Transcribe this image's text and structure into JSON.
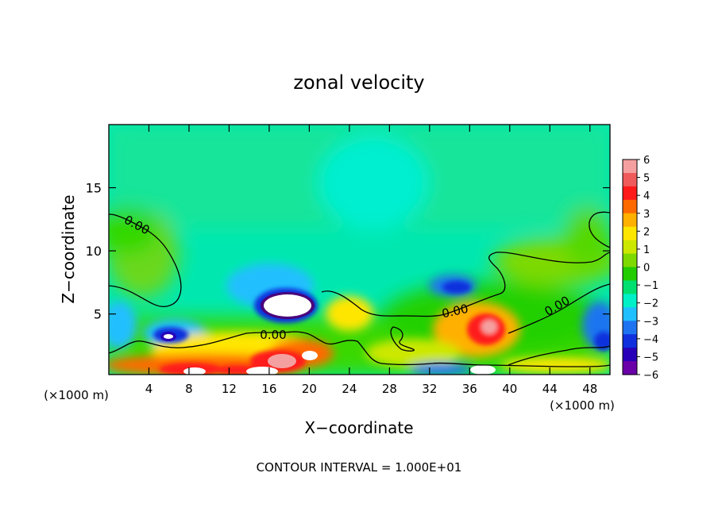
{
  "chart_data": {
    "type": "heatmap",
    "title": "zonal velocity",
    "xlabel": "X−coordinate",
    "ylabel": "Z−coordinate",
    "x_unit_left": "(×1000 m)",
    "x_unit_right": "(×1000 m)",
    "footer": "CONTOUR INTERVAL = 1.000E+01",
    "xlim": [
      0,
      50
    ],
    "ylim": [
      0.2,
      20
    ],
    "xticks": [
      4,
      8,
      12,
      16,
      20,
      24,
      28,
      32,
      36,
      40,
      44,
      48
    ],
    "xtick_labels": [
      "4",
      "8",
      "12",
      "16",
      "20",
      "24",
      "28",
      "32",
      "36",
      "40",
      "44",
      "48"
    ],
    "yticks": [
      5,
      10,
      15
    ],
    "ytick_labels": [
      "5",
      "10",
      "15"
    ],
    "colorbar": {
      "range": [
        -6,
        6
      ],
      "tick_labels": [
        "6",
        "5",
        "4",
        "3",
        "2",
        "1",
        "0",
        "−1",
        "−2",
        "−3",
        "−4",
        "−5",
        "−6"
      ],
      "colors": [
        "#f5a0a0",
        "#ef5a5a",
        "#ff1a1a",
        "#ff6a00",
        "#ffb000",
        "#ffe600",
        "#cce800",
        "#7ed900",
        "#22cc00",
        "#00e070",
        "#00f0c8",
        "#20bfff",
        "#1e74f0",
        "#1030dd",
        "#2800b8",
        "#6a00a8"
      ]
    },
    "contour_labels": [
      "0.00",
      "0.00",
      "0.00",
      "0.00"
    ],
    "background_value_band": "-2 to -1",
    "features": [
      {
        "x": 16.5,
        "z": 5.5,
        "value": -6,
        "note": "strong negative core"
      },
      {
        "x": 6,
        "z": 3,
        "value": -5
      },
      {
        "x": 34.5,
        "z": 7,
        "value": -4
      },
      {
        "x": 37.5,
        "z": 3.5,
        "value": 5
      },
      {
        "x": 17,
        "z": 1.2,
        "value": 6
      },
      {
        "x": 4,
        "z": 9,
        "value": 1
      }
    ]
  }
}
